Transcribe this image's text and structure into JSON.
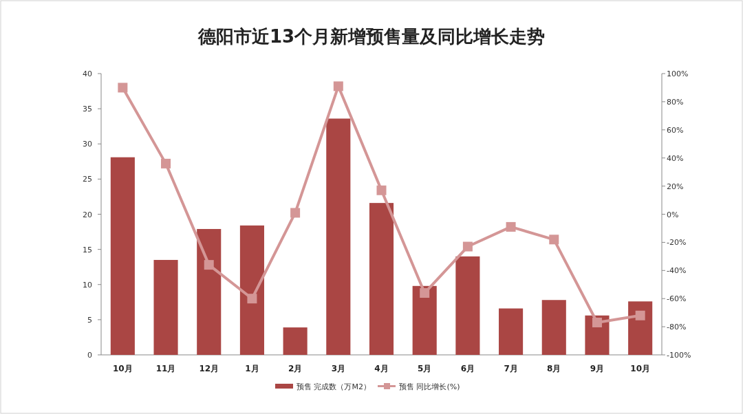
{
  "chart_data": {
    "type": "bar",
    "title": "德阳市近13个月新增预售量及同比增长走势",
    "categories": [
      "10月",
      "11月",
      "12月",
      "1月",
      "2月",
      "3月",
      "4月",
      "5月",
      "6月",
      "7月",
      "8月",
      "9月",
      "10月"
    ],
    "series": [
      {
        "name": "预售 完成数（万M2）",
        "color": "#aa4644",
        "values": [
          28.1,
          13.5,
          17.9,
          18.4,
          3.9,
          33.6,
          21.6,
          9.8,
          14.0,
          6.6,
          7.8,
          5.6,
          7.6
        ]
      },
      {
        "name": "预售 同比增长(%)",
        "type": "line",
        "axis": "y2",
        "color": "#d49696",
        "values": [
          90,
          36,
          -36,
          -60,
          1,
          91,
          17,
          -56,
          -23,
          -9,
          -18,
          -77,
          -72
        ]
      }
    ],
    "ylim": [
      0,
      40
    ],
    "yticks": [
      0,
      5,
      10,
      15,
      20,
      25,
      30,
      35,
      40
    ],
    "y2lim": [
      -100,
      100
    ],
    "y2ticks": [
      {
        "value": -100,
        "label": "-100%"
      },
      {
        "value": -80,
        "label": "-80%"
      },
      {
        "value": -60,
        "label": "-60%"
      },
      {
        "value": -40,
        "label": "-40%"
      },
      {
        "value": -20,
        "label": "-20%"
      },
      {
        "value": 0,
        "label": "0%"
      },
      {
        "value": 20,
        "label": "20%"
      },
      {
        "value": 40,
        "label": "40%"
      },
      {
        "value": 60,
        "label": "60%"
      },
      {
        "value": 80,
        "label": "80%"
      },
      {
        "value": 100,
        "label": "100%"
      }
    ],
    "marker": "square",
    "legend": "bottom"
  }
}
